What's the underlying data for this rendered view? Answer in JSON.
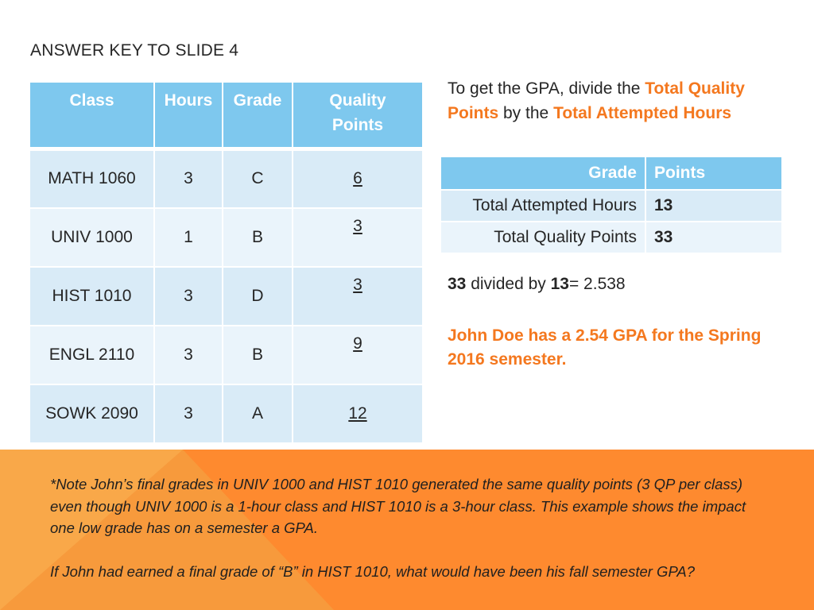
{
  "slide": {
    "title": "ANSWER KEY TO SLIDE 4"
  },
  "grades_table": {
    "headers": [
      "Class",
      "Hours",
      "Grade",
      "Quality Points"
    ],
    "rows": [
      {
        "class": "MATH 1060",
        "hours": "3",
        "grade": "C",
        "qp": "6"
      },
      {
        "class": "UNIV 1000",
        "hours": "1",
        "grade": "B",
        "qp": "3"
      },
      {
        "class": "HIST 1010",
        "hours": "3",
        "grade": "D",
        "qp": "3"
      },
      {
        "class": "ENGL 2110",
        "hours": "3",
        "grade": "B",
        "qp": "9"
      },
      {
        "class": "SOWK 2090",
        "hours": "3",
        "grade": "A",
        "qp": "12"
      }
    ]
  },
  "instructions": {
    "prefix": "To get the GPA, divide the ",
    "highlight1": "Total Quality Points",
    "middle": " by the ",
    "highlight2": "Total Attempted Hours"
  },
  "summary_table": {
    "headers": [
      "Grade",
      "Points"
    ],
    "rows": [
      {
        "label": "Total Attempted Hours",
        "value": "13"
      },
      {
        "label": "Total Quality Points",
        "value": "33"
      }
    ]
  },
  "calculation": {
    "numerator": "33",
    "text1": " divided by ",
    "denominator": "13",
    "text2": "= 2.538"
  },
  "conclusion": "John Doe has a 2.54 GPA for the Spring 2016 semester.",
  "footer": {
    "note1": "*Note John’s final grades in UNIV 1000 and HIST 1010 generated the same quality points (3 QP per class) even though UNIV 1000 is a 1-hour class and HIST 1010 is a 3-hour class. This example shows the impact one low grade has on a semester a GPA.",
    "note2": "If John had earned a final grade of “B” in HIST 1010, what would have been his fall semester GPA?"
  },
  "colors": {
    "accent_orange": "#f4781f",
    "header_blue": "#7ec8ee",
    "band_orange": "#fe8a2f"
  }
}
